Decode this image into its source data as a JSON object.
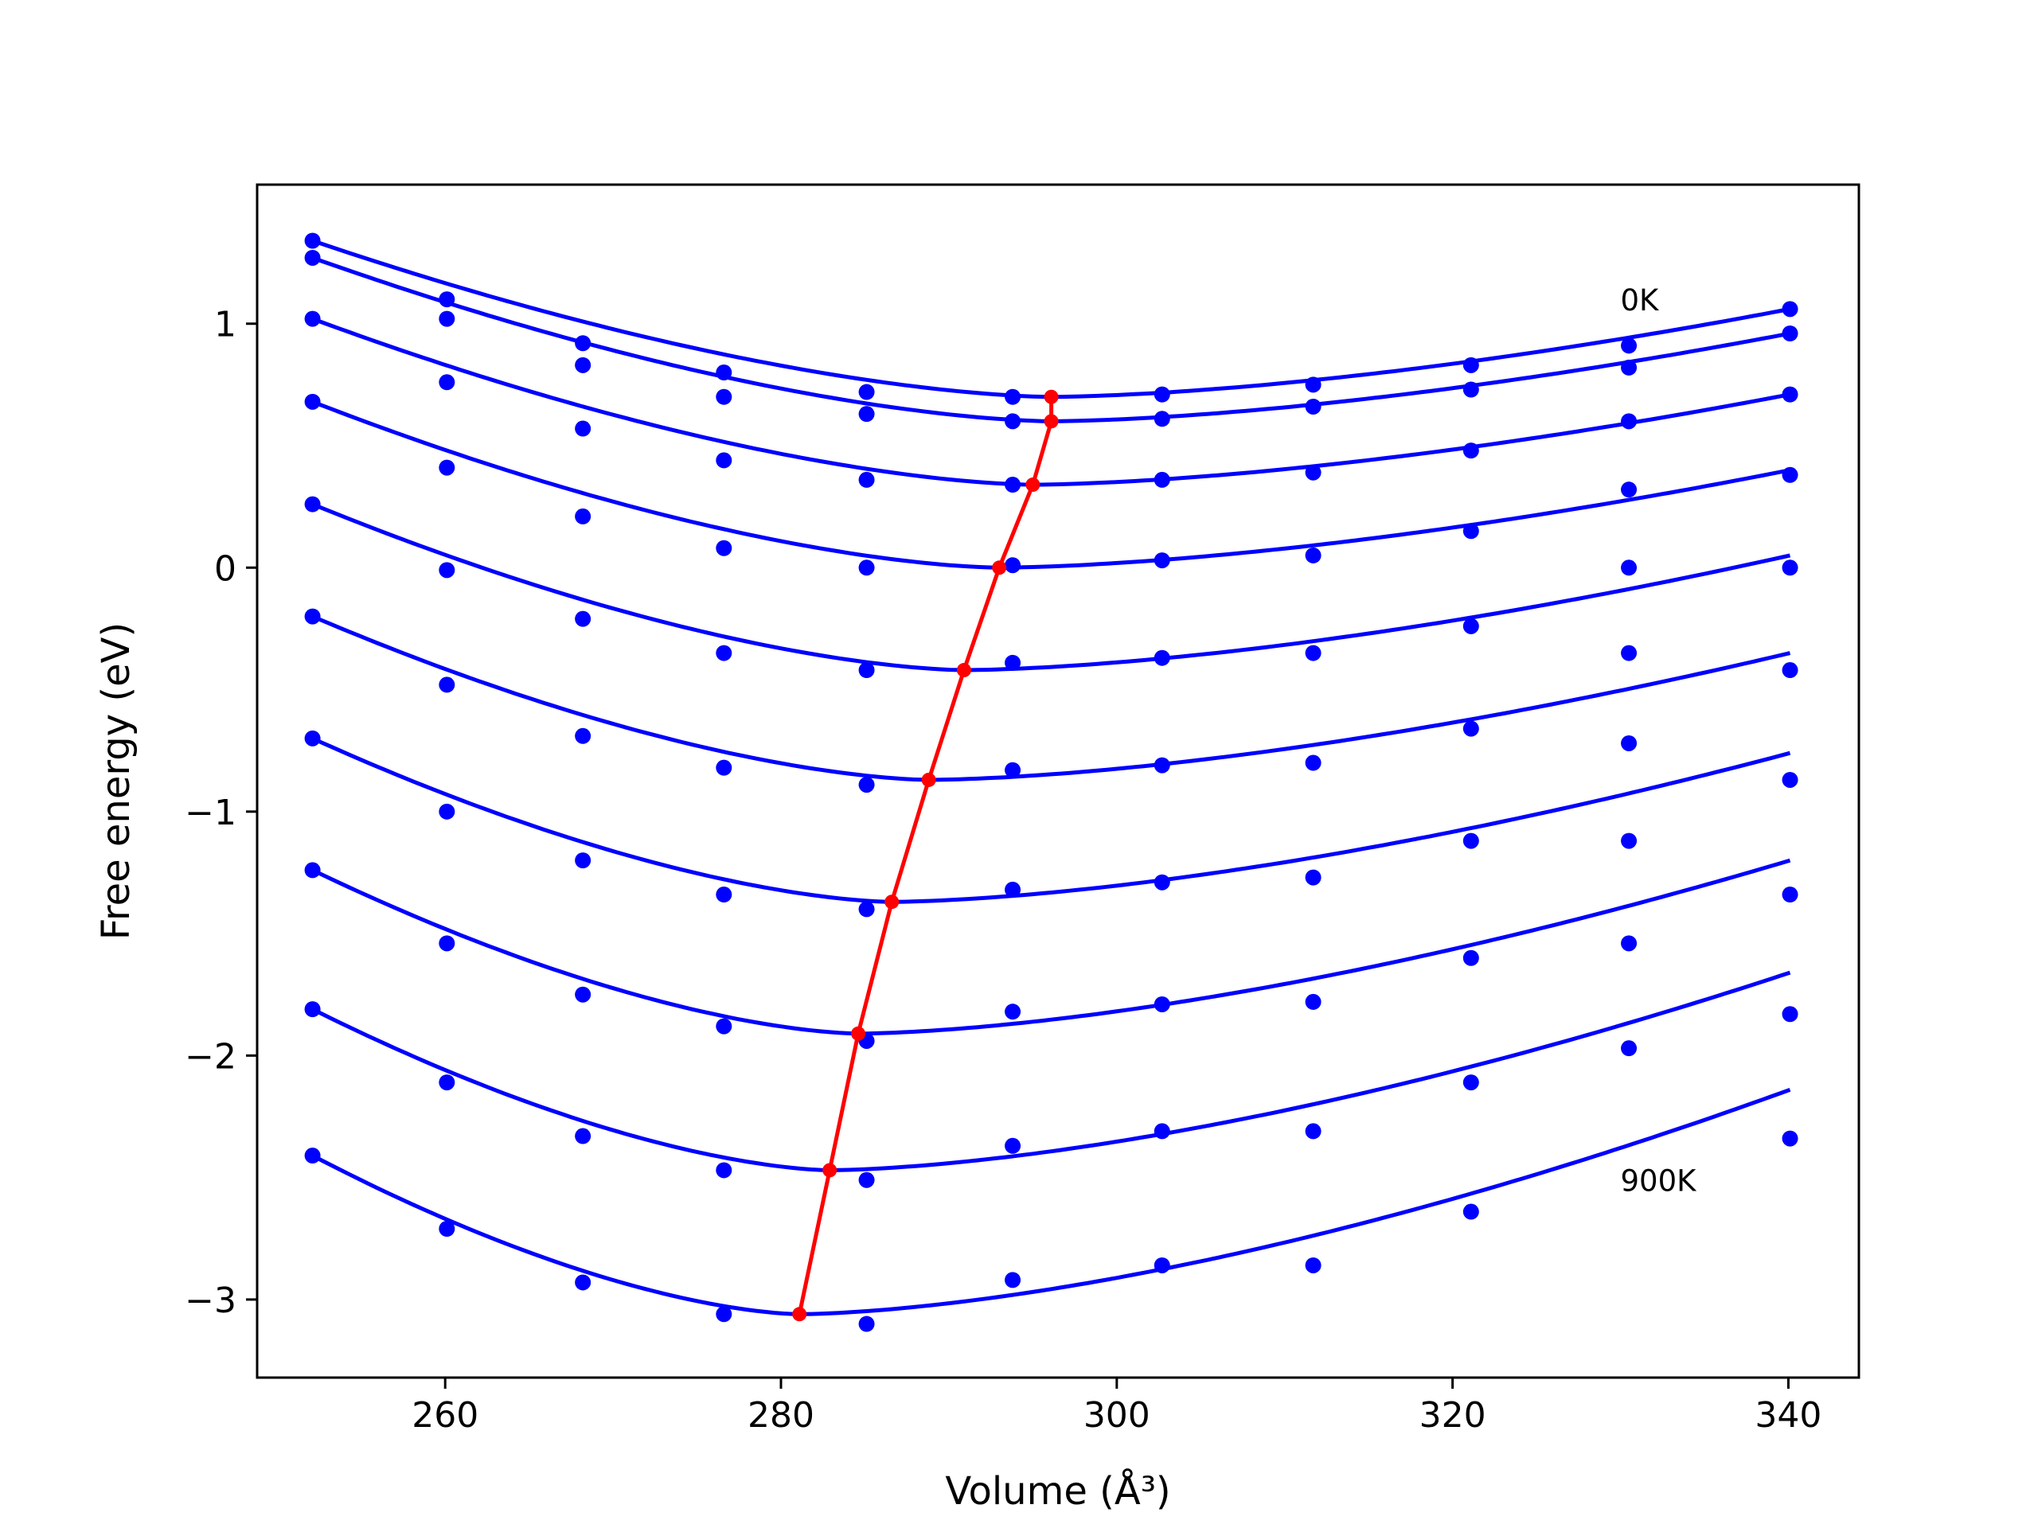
{
  "chart_data": {
    "type": "line",
    "xlabel": "Volume (Å³)",
    "ylabel": "Free energy (eV)",
    "xlim": [
      248.8,
      344.2
    ],
    "ylim": [
      -3.32,
      1.57
    ],
    "xticks": [
      260,
      280,
      300,
      320,
      340
    ],
    "xtick_labels": [
      "260",
      "280",
      "300",
      "320",
      "340"
    ],
    "yticks": [
      -3,
      -2,
      -1,
      0,
      1
    ],
    "ytick_labels": [
      "−3",
      "−2",
      "−1",
      "0",
      "1"
    ],
    "grid": false,
    "legend": "none",
    "annotations": [
      {
        "text": "0K",
        "x": 330.0,
        "y": 1.1
      },
      {
        "text": "900K",
        "x": 330.0,
        "y": -2.51
      }
    ],
    "colors": {
      "curves": "#0000ff",
      "minima": "#ff0000",
      "frame": "#000000"
    },
    "x_points": [
      252.1,
      260.1,
      268.2,
      276.6,
      285.1,
      293.8,
      302.7,
      311.7,
      321.1,
      330.5,
      340.1
    ],
    "series": [
      {
        "role": "0K",
        "points_y": [
          1.34,
          1.1,
          0.92,
          0.8,
          0.72,
          0.7,
          0.71,
          0.75,
          0.83,
          0.91,
          1.06
        ],
        "fit_min_x": 296.1,
        "fit_min_y": 0.7,
        "fit_end_y": 1.06
      },
      {
        "points_y": [
          1.27,
          1.02,
          0.83,
          0.7,
          0.63,
          0.6,
          0.61,
          0.66,
          0.73,
          0.82,
          0.96
        ],
        "fit_min_x": 296.1,
        "fit_min_y": 0.6,
        "fit_end_y": 0.96
      },
      {
        "points_y": [
          1.02,
          0.76,
          0.57,
          0.44,
          0.36,
          0.34,
          0.36,
          0.39,
          0.48,
          0.6,
          0.71
        ],
        "fit_min_x": 295.0,
        "fit_min_y": 0.34,
        "fit_end_y": 0.71
      },
      {
        "points_y": [
          0.68,
          0.41,
          0.21,
          0.08,
          0.0,
          0.01,
          0.03,
          0.05,
          0.15,
          0.32,
          0.38
        ],
        "fit_min_x": 293.0,
        "fit_min_y": 0.0,
        "fit_end_y": 0.4
      },
      {
        "points_y": [
          0.26,
          -0.01,
          -0.21,
          -0.35,
          -0.42,
          -0.39,
          -0.37,
          -0.35,
          -0.24,
          0.0,
          0.0
        ],
        "fit_min_x": 290.9,
        "fit_min_y": -0.42,
        "fit_end_y": 0.05
      },
      {
        "points_y": [
          -0.2,
          -0.48,
          -0.69,
          -0.82,
          -0.89,
          -0.83,
          -0.81,
          -0.8,
          -0.66,
          -0.35,
          -0.42
        ],
        "fit_min_x": 288.8,
        "fit_min_y": -0.87,
        "fit_end_y": -0.35
      },
      {
        "points_y": [
          -0.7,
          -1.0,
          -1.2,
          -1.34,
          -1.4,
          -1.32,
          -1.29,
          -1.27,
          -1.12,
          -0.72,
          -0.87
        ],
        "fit_min_x": 286.6,
        "fit_min_y": -1.37,
        "fit_end_y": -0.76
      },
      {
        "points_y": [
          -1.24,
          -1.54,
          -1.75,
          -1.88,
          -1.94,
          -1.82,
          -1.79,
          -1.78,
          -1.6,
          -1.12,
          -1.34
        ],
        "fit_min_x": 284.6,
        "fit_min_y": -1.91,
        "fit_end_y": -1.2
      },
      {
        "points_y": [
          -1.81,
          -2.11,
          -2.33,
          -2.47,
          -2.51,
          -2.37,
          -2.31,
          -2.31,
          -2.11,
          -1.54,
          -1.83
        ],
        "fit_min_x": 282.9,
        "fit_min_y": -2.47,
        "fit_end_y": -1.66
      },
      {
        "role": "900K",
        "points_y": [
          -2.41,
          -2.71,
          -2.93,
          -3.06,
          -3.1,
          -2.92,
          -2.86,
          -2.86,
          -2.64,
          -1.97,
          -2.34
        ],
        "fit_min_x": 281.1,
        "fit_min_y": -3.06,
        "fit_end_y": -2.14
      }
    ],
    "minima_line": {
      "x": [
        296.1,
        296.1,
        295.0,
        293.0,
        290.9,
        288.8,
        286.6,
        284.6,
        282.9,
        281.1
      ],
      "y": [
        0.7,
        0.6,
        0.34,
        0.0,
        -0.42,
        -0.87,
        -1.37,
        -1.91,
        -2.47,
        -3.06
      ]
    }
  }
}
